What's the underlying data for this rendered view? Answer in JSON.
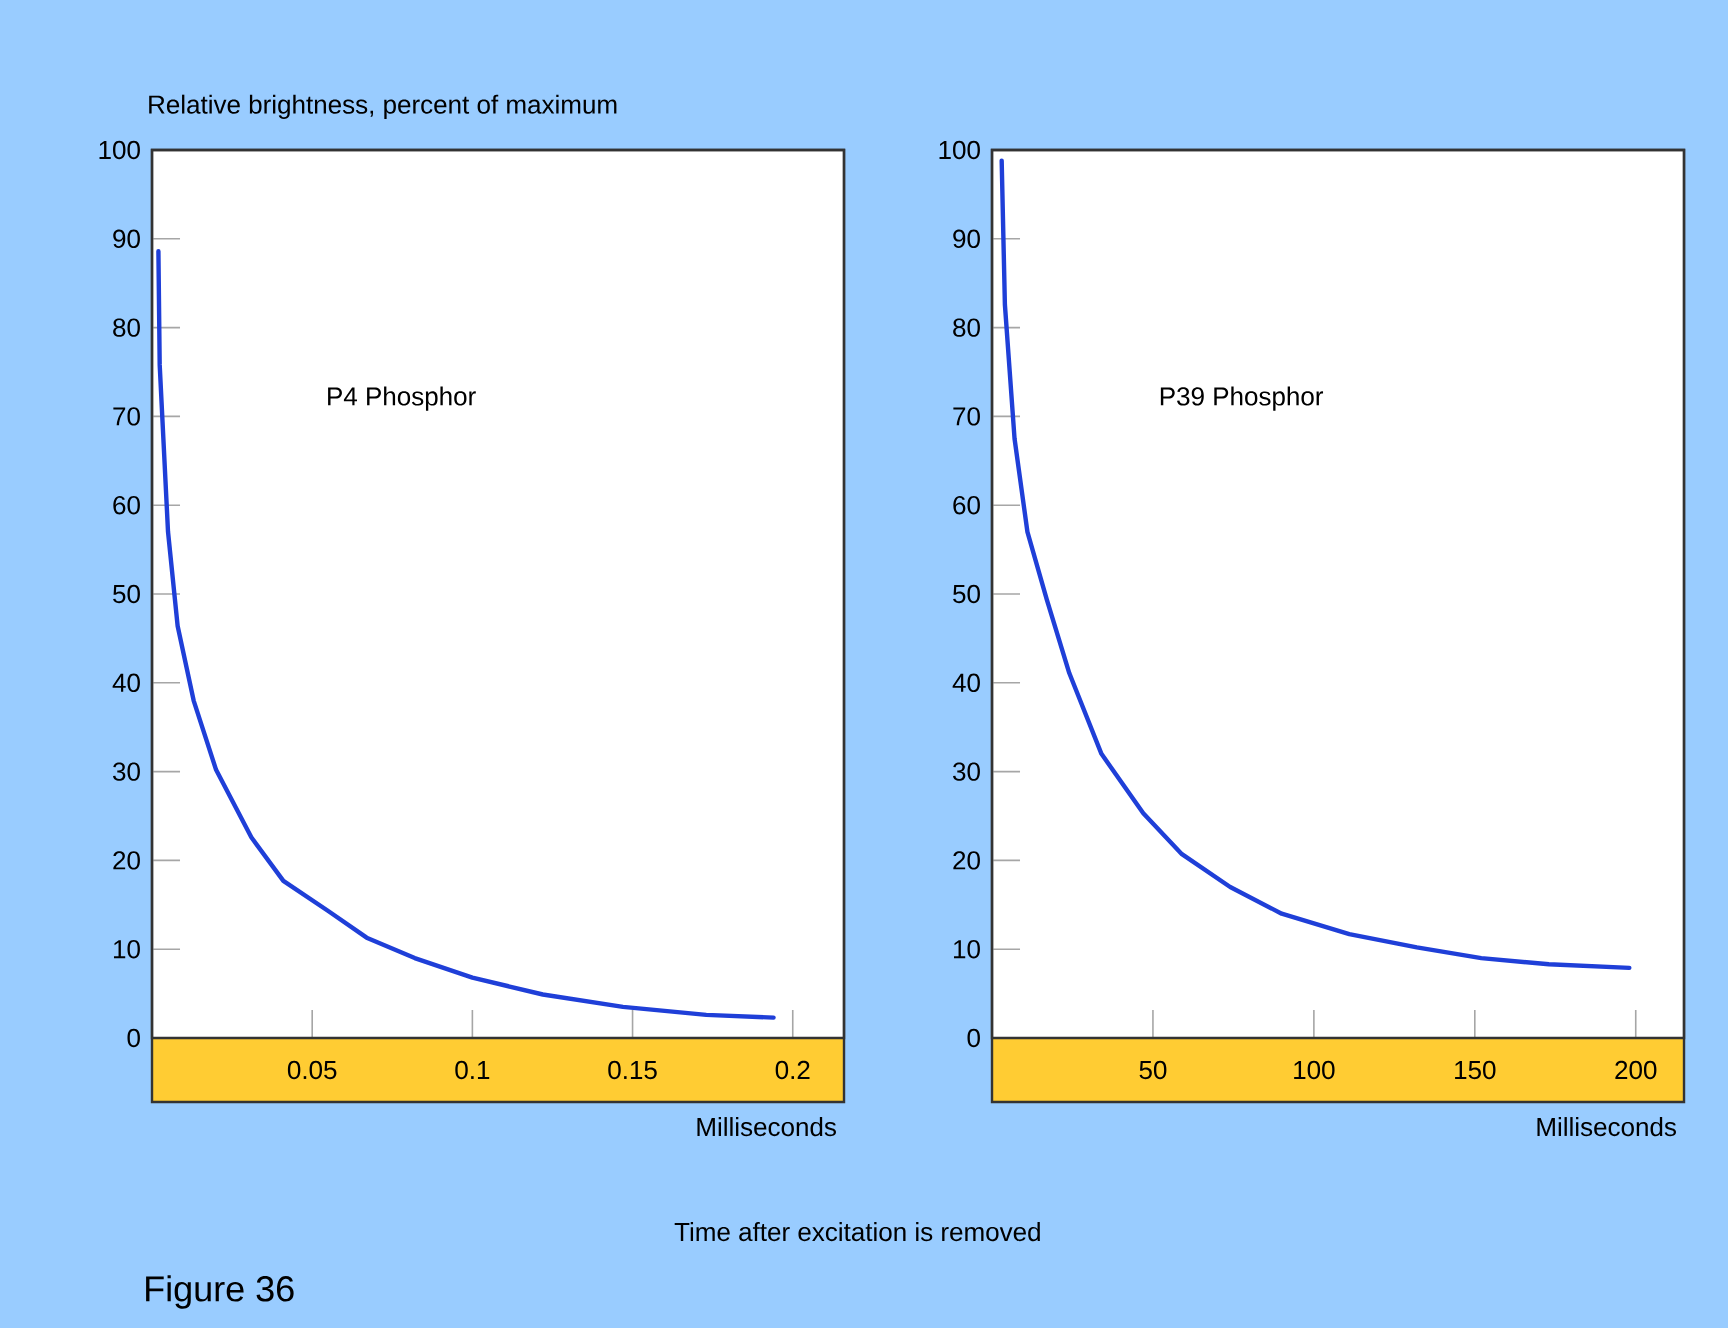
{
  "chart_data": [
    {
      "type": "line",
      "ylabel": "Relative brightness, percent of maximum",
      "xlabel": "Milliseconds",
      "xlim": [
        0,
        0.216
      ],
      "xticks": [
        0.05,
        0.1,
        0.15,
        0.2
      ],
      "ylim": [
        0,
        100
      ],
      "yticks": [
        0,
        10,
        20,
        30,
        40,
        50,
        60,
        70,
        80,
        90,
        100
      ],
      "annotations": [
        "Time after excitation is removed",
        "Figure 36"
      ],
      "series": [
        {
          "name": "P4 Phosphor",
          "color": "#1f3fd8",
          "x": [
            0.002,
            0.0024,
            0.005,
            0.008,
            0.013,
            0.02,
            0.031,
            0.041,
            0.055,
            0.067,
            0.082,
            0.1,
            0.122,
            0.147,
            0.173,
            0.194
          ],
          "values": [
            88.6,
            75.8,
            57,
            46.4,
            38,
            30.2,
            22.6,
            17.7,
            14.3,
            11.3,
            9.0,
            6.8,
            4.9,
            3.5,
            2.6,
            2.3
          ]
        }
      ]
    },
    {
      "type": "line",
      "xlabel": "Milliseconds",
      "xlim": [
        0,
        215
      ],
      "xticks": [
        50,
        100,
        150,
        200
      ],
      "ylim": [
        0,
        100
      ],
      "yticks": [
        0,
        10,
        20,
        30,
        40,
        50,
        60,
        70,
        80,
        90,
        100
      ],
      "series": [
        {
          "name": "P39 Phosphor",
          "color": "#1f3fd8",
          "x": [
            3,
            4,
            7,
            11,
            17,
            24,
            34,
            47,
            59,
            74,
            90,
            111,
            132,
            152,
            173,
            198
          ],
          "values": [
            98.8,
            82.6,
            67.5,
            57,
            49.4,
            41.1,
            32,
            25.3,
            20.7,
            17,
            14,
            11.7,
            10.2,
            9.0,
            8.3,
            7.9
          ]
        }
      ]
    }
  ]
}
